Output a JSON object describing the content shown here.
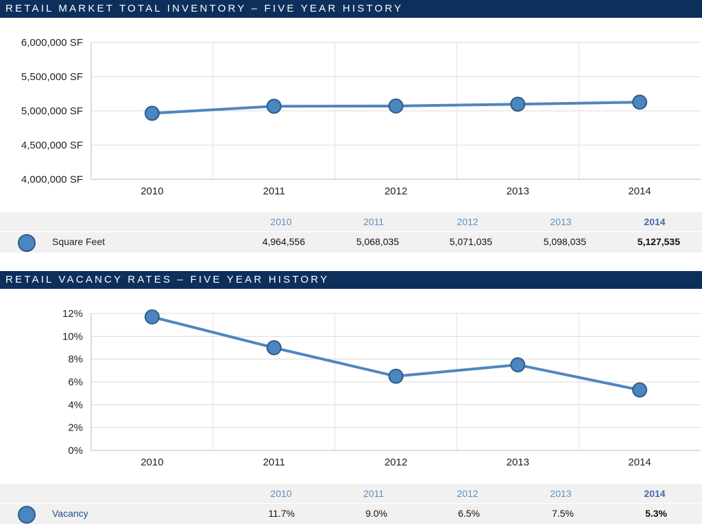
{
  "colors": {
    "banner": "#0d2f5c",
    "series": "#4f86bd",
    "header_years": "#5b8fc3"
  },
  "chart_data": [
    {
      "type": "line",
      "title": "RETAIL MARKET TOTAL INVENTORY – FIVE YEAR HISTORY",
      "x": [
        "2010",
        "2011",
        "2012",
        "2013",
        "2014"
      ],
      "series": [
        {
          "name": "Square Feet",
          "values": [
            4964556,
            5068035,
            5071035,
            5098035,
            5127535
          ]
        }
      ],
      "ylim": [
        4000000,
        6000000
      ],
      "yticks": [
        "4,000,000 SF",
        "4,500,000 SF",
        "5,000,000 SF",
        "5,500,000 SF",
        "6,000,000 SF"
      ],
      "grid": true,
      "table": {
        "years": [
          "2010",
          "2011",
          "2012",
          "2013",
          "2014"
        ],
        "label": "Square Feet",
        "values": [
          "4,964,556",
          "5,068,035",
          "5,071,035",
          "5,098,035",
          "5,127,535"
        ]
      }
    },
    {
      "type": "line",
      "title": "RETAIL VACANCY RATES – FIVE YEAR HISTORY",
      "x": [
        "2010",
        "2011",
        "2012",
        "2013",
        "2014"
      ],
      "series": [
        {
          "name": "Vacancy",
          "values": [
            11.7,
            9.0,
            6.5,
            7.5,
            5.3
          ]
        }
      ],
      "ylim": [
        0,
        12
      ],
      "yticks": [
        "0%",
        "2%",
        "4%",
        "6%",
        "8%",
        "10%",
        "12%"
      ],
      "grid": true,
      "table": {
        "years": [
          "2010",
          "2011",
          "2012",
          "2013",
          "2014"
        ],
        "label": "Vacancy",
        "values": [
          "11.7%",
          "9.0%",
          "6.5%",
          "7.5%",
          "5.3%"
        ]
      }
    }
  ]
}
